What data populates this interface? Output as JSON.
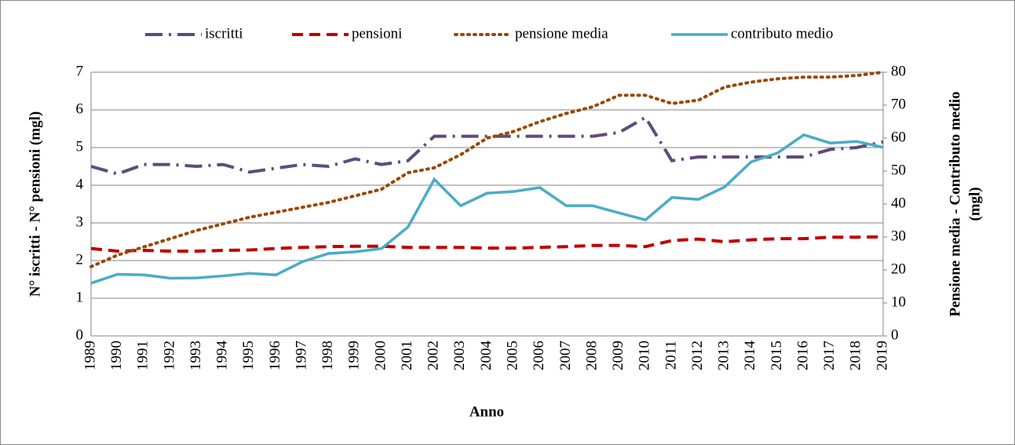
{
  "chart_data": {
    "type": "line",
    "x_label": "Anno",
    "y_label": "N° iscritti - N° pensioni (mgl)",
    "y2_label": [
      "Pensione media - Contributo medio",
      "(mgl)"
    ],
    "categories": [
      "1989",
      "1990",
      "1991",
      "1992",
      "1993",
      "1994",
      "1995",
      "1996",
      "1997",
      "1998",
      "1999",
      "2000",
      "2001",
      "2002",
      "2003",
      "2004",
      "2005",
      "2006",
      "2007",
      "2008",
      "2009",
      "2010",
      "2011",
      "2012",
      "2013",
      "2014",
      "2015",
      "2016",
      "2017",
      "2018",
      "2019"
    ],
    "ylim": [
      0,
      7
    ],
    "yticks": [
      0,
      1,
      2,
      3,
      4,
      5,
      6,
      7
    ],
    "y2lim": [
      0,
      80
    ],
    "y2ticks": [
      0,
      10,
      20,
      30,
      40,
      50,
      60,
      70,
      80
    ],
    "grid": true,
    "legend": "top",
    "series": [
      {
        "name": "iscritti",
        "color": "#604a7b",
        "dash": "dashdot",
        "values": [
          4.5,
          4.3,
          4.55,
          4.55,
          4.5,
          4.55,
          4.35,
          4.45,
          4.55,
          4.5,
          4.7,
          4.55,
          4.65,
          5.3,
          5.3,
          5.3,
          5.3,
          5.3,
          5.3,
          5.3,
          5.4,
          5.8,
          4.65,
          4.75,
          4.75,
          4.75,
          4.75,
          4.75,
          4.95,
          5.0,
          5.15
        ]
      },
      {
        "name": "pensioni",
        "color": "#c00000",
        "dash": "dash",
        "values": [
          2.32,
          2.25,
          2.27,
          2.25,
          2.25,
          2.27,
          2.28,
          2.32,
          2.35,
          2.37,
          2.38,
          2.38,
          2.35,
          2.35,
          2.35,
          2.33,
          2.33,
          2.35,
          2.37,
          2.4,
          2.4,
          2.37,
          2.53,
          2.57,
          2.5,
          2.55,
          2.58,
          2.58,
          2.62,
          2.62,
          2.63
        ]
      },
      {
        "name": "pensione media",
        "color": "#984807",
        "dash": "dot",
        "axis": "y2",
        "values": [
          21,
          24.5,
          27,
          29.5,
          32,
          34,
          36,
          37.5,
          39,
          40.5,
          42.5,
          44.5,
          49.5,
          51,
          55,
          60,
          62,
          65,
          67.5,
          69.5,
          73,
          73,
          70.5,
          71.5,
          75.5,
          77,
          78,
          78.5,
          78.5,
          79,
          80
        ]
      },
      {
        "name": "contributo medio",
        "color": "#4bacc6",
        "dash": "solid",
        "axis": "y2",
        "values": [
          16,
          18.7,
          18.5,
          17.5,
          17.6,
          18.2,
          19,
          18.5,
          22.5,
          25,
          25.5,
          26.5,
          33,
          47.5,
          39.5,
          43.3,
          43.8,
          45,
          39.5,
          39.5,
          37.3,
          35.2,
          42,
          41.4,
          45.2,
          52.8,
          55.5,
          61,
          58.5,
          59,
          57.2
        ]
      }
    ]
  }
}
